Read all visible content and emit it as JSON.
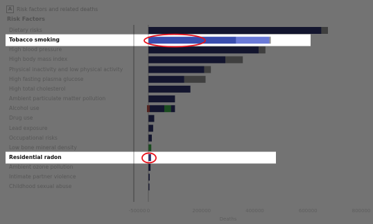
{
  "panel": {
    "letter": "A",
    "title": "Risk factors and related deaths"
  },
  "section_label": "Risk Factors",
  "colors": {
    "bar_main": "#2a2f66",
    "bar_mid": "#3a4eaf",
    "bar_light": "#6a7ad8",
    "bar_gray": "#8c8c8c",
    "overlay": "rgba(0,0,0,0.55)",
    "highlight_ring": "#e8101a",
    "green": "#3aa648",
    "red": "#b8342c"
  },
  "chart_data": {
    "type": "bar",
    "orientation": "horizontal",
    "stacked": true,
    "xlabel": "Deaths",
    "xlim": [
      -50000,
      800000
    ],
    "xticks": [
      -50000,
      0,
      200000,
      400000,
      600000,
      800000
    ],
    "xtick_labels": [
      "-50000",
      "0",
      "200000",
      "400000",
      "600000",
      "800000"
    ],
    "categories": [
      "Dietary risks",
      "Tobacco smoking",
      "High blood pressure",
      "High body mass index",
      "Physical inactivity and low physical activity",
      "High fasting plasma glucose",
      "High total cholesterol",
      "Ambient particulate matter pollution",
      "Alcohol use",
      "Drug use",
      "Lead exposure",
      "Occupational risks",
      "Low bone mineral density",
      "Residential radon",
      "Ambient ozone pollution",
      "Intimate partner violence",
      "Childhood sexual abuse"
    ],
    "highlighted": [
      "Tobacco smoking",
      "Residential radon"
    ],
    "bars": [
      [
        {
          "start": 0,
          "value": 650000,
          "color": "bar_main"
        },
        {
          "start": 650000,
          "value": 25000,
          "color": "bar_gray"
        }
      ],
      [
        {
          "start": 0,
          "value": 330000,
          "color": "bar_mid"
        },
        {
          "start": 330000,
          "value": 125000,
          "color": "bar_light"
        },
        {
          "start": 455000,
          "value": 5000,
          "color": "bar_gray"
        }
      ],
      [
        {
          "start": 0,
          "value": 415000,
          "color": "bar_main"
        },
        {
          "start": 415000,
          "value": 25000,
          "color": "bar_gray"
        }
      ],
      [
        {
          "start": 0,
          "value": 290000,
          "color": "bar_main"
        },
        {
          "start": 290000,
          "value": 65000,
          "color": "bar_gray"
        }
      ],
      [
        {
          "start": 0,
          "value": 210000,
          "color": "bar_main"
        },
        {
          "start": 210000,
          "value": 25000,
          "color": "bar_gray"
        }
      ],
      [
        {
          "start": 0,
          "value": 135000,
          "color": "bar_main"
        },
        {
          "start": 135000,
          "value": 80000,
          "color": "bar_gray"
        }
      ],
      [
        {
          "start": 0,
          "value": 158000,
          "color": "bar_main"
        }
      ],
      [
        {
          "start": 0,
          "value": 100000,
          "color": "bar_main"
        }
      ],
      [
        {
          "start": -5000,
          "value": 10000,
          "color": "red"
        },
        {
          "start": 5000,
          "value": 55000,
          "color": "bar_main"
        },
        {
          "start": 60000,
          "value": 25000,
          "color": "green"
        },
        {
          "start": 85000,
          "value": 15000,
          "color": "bar_main"
        }
      ],
      [
        {
          "start": 0,
          "value": 22000,
          "color": "bar_main"
        }
      ],
      [
        {
          "start": 0,
          "value": 18000,
          "color": "bar_main"
        }
      ],
      [
        {
          "start": 0,
          "value": 13000,
          "color": "bar_main"
        }
      ],
      [
        {
          "start": 0,
          "value": 11000,
          "color": "green"
        }
      ],
      [
        {
          "start": 0,
          "value": 10000,
          "color": "bar_main"
        }
      ],
      [
        {
          "start": 0,
          "value": 8000,
          "color": "bar_main"
        }
      ],
      [
        {
          "start": 0,
          "value": 5000,
          "color": "bar_main"
        }
      ],
      [
        {
          "start": 0,
          "value": 4000,
          "color": "bar_main"
        }
      ]
    ]
  }
}
